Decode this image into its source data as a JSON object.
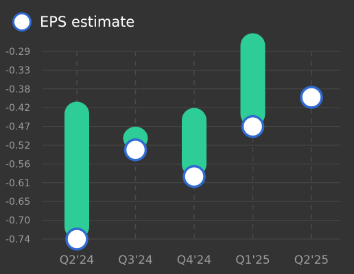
{
  "chart_data": {
    "type": "bar",
    "categories": [
      "Q2'24",
      "Q3'24",
      "Q4'24",
      "Q1'25",
      "Q2'25"
    ],
    "ytick_labels": [
      "-0.29",
      "-0.33",
      "-0.38",
      "-0.42",
      "-0.47",
      "-0.52",
      "-0.56",
      "-0.61",
      "-0.65",
      "-0.70",
      "-0.74"
    ],
    "ylim": [
      -0.74,
      -0.29
    ],
    "series": [
      {
        "name": "EPS estimate",
        "kind": "marker",
        "values": [
          -0.74,
          -0.526,
          -0.59,
          -0.47,
          -0.4
        ]
      },
      {
        "name": "",
        "kind": "range-bar",
        "low": [
          -0.74,
          -0.526,
          -0.59,
          -0.47,
          null
        ],
        "high": [
          -0.44,
          -0.5,
          -0.455,
          -0.276,
          null
        ]
      }
    ],
    "grid": true,
    "legend_position": "top-left",
    "colors": {
      "background": "#333333",
      "bar": "#2ecc96",
      "marker_fill": "#ffffff",
      "marker_stroke": "#2f6bd1",
      "grid": "#4a4a4a",
      "tick_label": "#9a9a9a",
      "legend_text": "#ffffff"
    }
  }
}
